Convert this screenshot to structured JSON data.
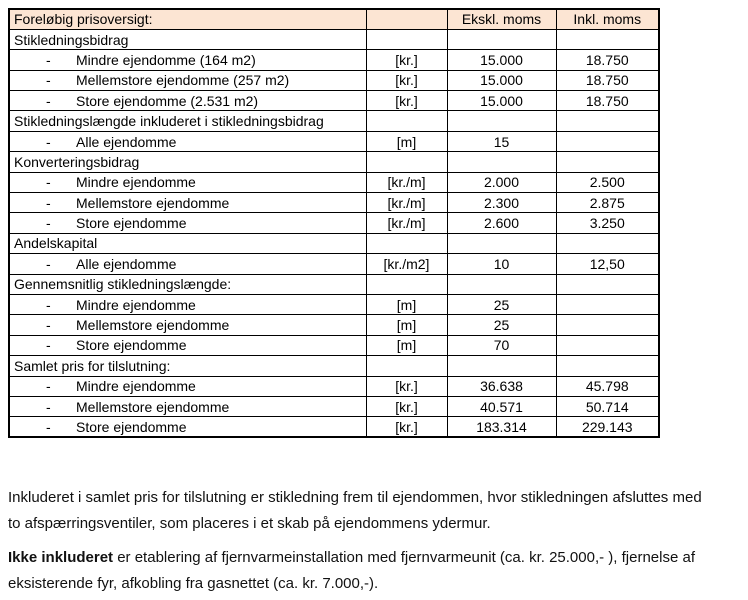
{
  "table": {
    "header": {
      "title": "Foreløbig prisoversigt:",
      "unit": "",
      "excl": "Ekskl. moms",
      "incl": "Inkl. moms"
    },
    "bullet": "-",
    "rows": [
      {
        "type": "section",
        "label": "Stikledningsbidrag",
        "unit": "",
        "excl": "",
        "incl": ""
      },
      {
        "type": "item",
        "label": "Mindre ejendomme (164 m2)",
        "unit": "[kr.]",
        "excl": "15.000",
        "incl": "18.750"
      },
      {
        "type": "item",
        "label": "Mellemstore ejendomme (257 m2)",
        "unit": "[kr.]",
        "excl": "15.000",
        "incl": "18.750"
      },
      {
        "type": "item",
        "label": "Store ejendomme (2.531 m2)",
        "unit": "[kr.]",
        "excl": "15.000",
        "incl": "18.750"
      },
      {
        "type": "section",
        "label": "Stikledningslængde inkluderet i stikledningsbidrag",
        "unit": "",
        "excl": "",
        "incl": ""
      },
      {
        "type": "item",
        "label": "Alle ejendomme",
        "unit": "[m]",
        "excl": "15",
        "incl": ""
      },
      {
        "type": "section",
        "label": "Konverteringsbidrag",
        "unit": "",
        "excl": "",
        "incl": ""
      },
      {
        "type": "item",
        "label": "Mindre ejendomme",
        "unit": "[kr./m]",
        "excl": "2.000",
        "incl": "2.500"
      },
      {
        "type": "item",
        "label": "Mellemstore ejendomme",
        "unit": "[kr./m]",
        "excl": "2.300",
        "incl": "2.875"
      },
      {
        "type": "item",
        "label": "Store ejendomme",
        "unit": "[kr./m]",
        "excl": "2.600",
        "incl": "3.250"
      },
      {
        "type": "section",
        "label": "Andelskapital",
        "unit": "",
        "excl": "",
        "incl": ""
      },
      {
        "type": "item",
        "label": "Alle ejendomme",
        "unit": "[kr./m2]",
        "excl": "10",
        "incl": "12,50"
      },
      {
        "type": "section",
        "label": "Gennemsnitlig stikledningslængde:",
        "unit": "",
        "excl": "",
        "incl": ""
      },
      {
        "type": "item",
        "label": "Mindre ejendomme",
        "unit": "[m]",
        "excl": "25",
        "incl": ""
      },
      {
        "type": "item",
        "label": "Mellemstore ejendomme",
        "unit": "[m]",
        "excl": "25",
        "incl": ""
      },
      {
        "type": "item",
        "label": "Store ejendomme",
        "unit": "[m]",
        "excl": "70",
        "incl": ""
      },
      {
        "type": "section",
        "label": "Samlet pris for tilslutning:",
        "unit": "",
        "excl": "",
        "incl": ""
      },
      {
        "type": "item",
        "label": "Mindre ejendomme",
        "unit": "[kr.]",
        "excl": "36.638",
        "incl": "45.798"
      },
      {
        "type": "item",
        "label": "Mellemstore ejendomme",
        "unit": "[kr.]",
        "excl": "40.571",
        "incl": "50.714"
      },
      {
        "type": "item",
        "label": "Store ejendomme",
        "unit": "[kr.]",
        "excl": "183.314",
        "incl": "229.143"
      }
    ]
  },
  "notes": {
    "paragraph1": "Inkluderet i samlet pris for tilslutning er stikledning frem til ejendommen, hvor stikledningen afsluttes med\nto afspærringsventiler, som placeres i et skab på ejendommens ydermur.",
    "paragraph2_bold": "Ikke inkluderet",
    "paragraph2_rest": " er etablering af fjernvarmeinstallation med fjernvarmeunit (ca. kr. 25.000,- ), fjernelse af\neksisterende fyr, afkobling fra gasnettet (ca. kr. 7.000,-)."
  },
  "colors": {
    "header_bg": "#fce5d3",
    "border": "#000000",
    "text": "#111111",
    "page_bg": "#ffffff"
  }
}
